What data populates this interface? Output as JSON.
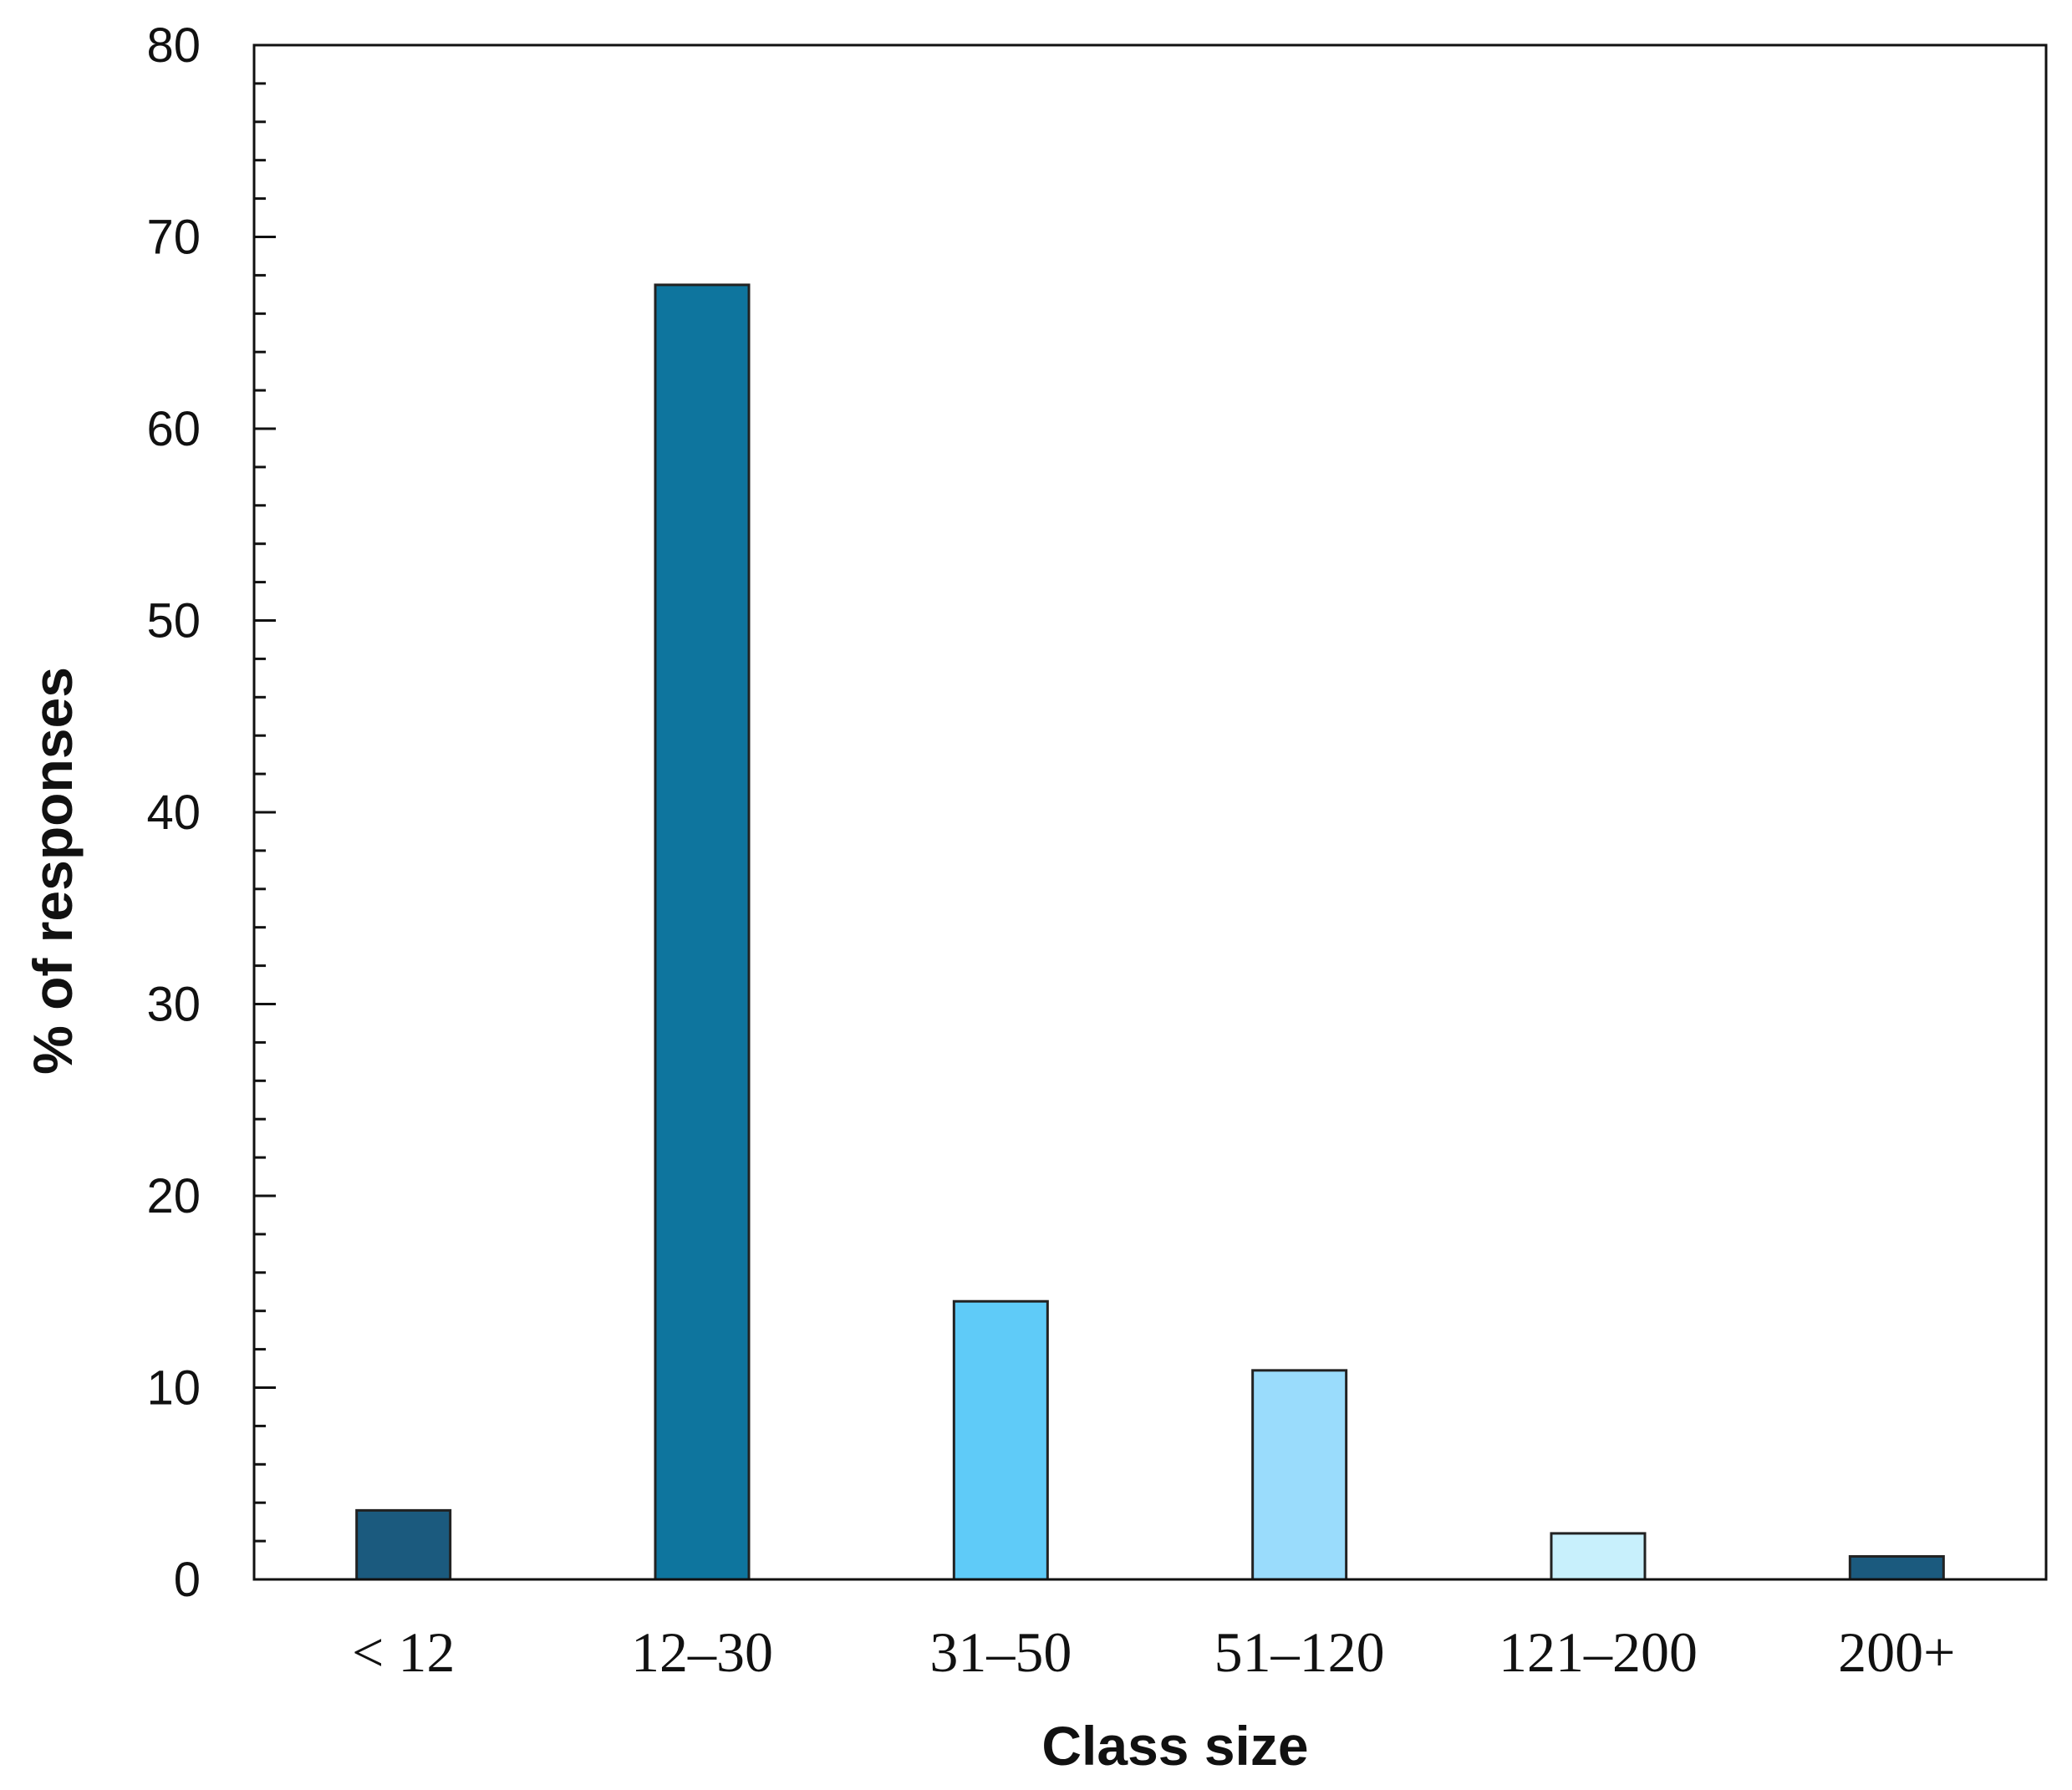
{
  "chart_data": {
    "type": "bar",
    "title": "",
    "xlabel": "Class size",
    "ylabel": "% of responses",
    "categories": [
      "< 12",
      "12–30",
      "31–50",
      "51–120",
      "121–200",
      "200+"
    ],
    "values": [
      3.6,
      67.5,
      14.5,
      10.9,
      2.4,
      1.2
    ],
    "colors": [
      "#1b5a7e",
      "#0e759e",
      "#5fcbf8",
      "#9adcfc",
      "#c8f0fc",
      "#1b5a7e"
    ],
    "ylim": [
      0,
      80
    ],
    "yticks": [
      0,
      10,
      20,
      30,
      40,
      50,
      60,
      70,
      80
    ],
    "y_minor_step": 2,
    "grid": false,
    "legend": "none"
  }
}
